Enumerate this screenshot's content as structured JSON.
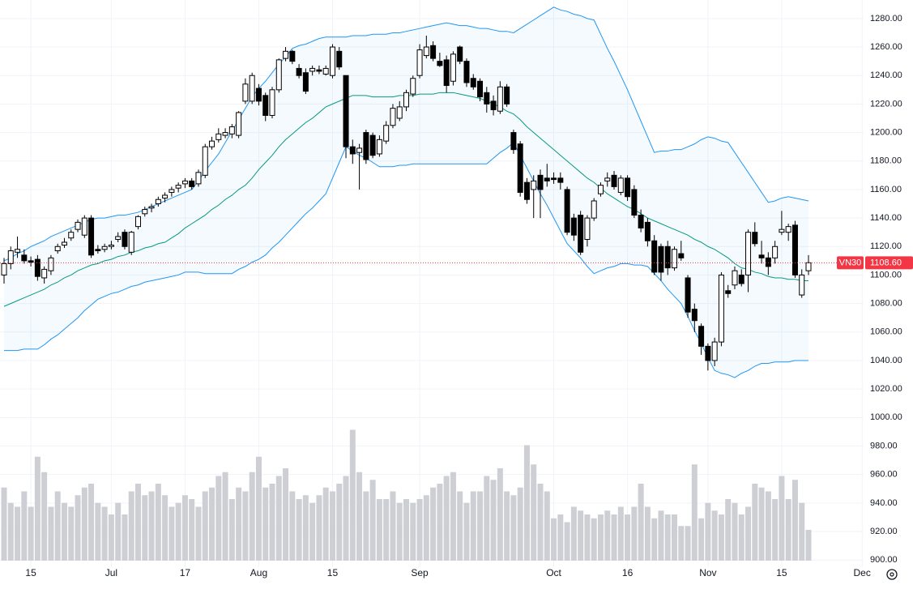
{
  "chart_data": {
    "type": "candlestick",
    "symbol": "VN30",
    "last_price": {
      "value": 1108.6,
      "label": "1108.60"
    },
    "ylim": [
      895,
      1293
    ],
    "yticks": [
      {
        "value": 900,
        "label": "900.00"
      },
      {
        "value": 920,
        "label": "920.00"
      },
      {
        "value": 940,
        "label": "940.00"
      },
      {
        "value": 960,
        "label": "960.00"
      },
      {
        "value": 980,
        "label": "980.00"
      },
      {
        "value": 1000,
        "label": "1000.00"
      },
      {
        "value": 1020,
        "label": "1020.00"
      },
      {
        "value": 1040,
        "label": "1040.00"
      },
      {
        "value": 1060,
        "label": "1060.00"
      },
      {
        "value": 1080,
        "label": "1080.00"
      },
      {
        "value": 1100,
        "label": "1100.00"
      },
      {
        "value": 1120,
        "label": "1120.00"
      },
      {
        "value": 1140,
        "label": "1140.00"
      },
      {
        "value": 1160,
        "label": "1160.00"
      },
      {
        "value": 1180,
        "label": "1180.00"
      },
      {
        "value": 1200,
        "label": "1200.00"
      },
      {
        "value": 1220,
        "label": "1220.00"
      },
      {
        "value": 1240,
        "label": "1240.00"
      },
      {
        "value": 1260,
        "label": "1260.00"
      },
      {
        "value": 1280,
        "label": "1280.00"
      }
    ],
    "grid": true,
    "volume_lim": [
      0,
      400
    ],
    "colors": {
      "up": "#ffffff",
      "down": "#000000",
      "outline": "#000000",
      "volume": "#cdcfd4",
      "bb_upper": "#2196f3",
      "bb_middle": "#089981",
      "bb_lower": "#2196f3",
      "band_fill": "#2196f3",
      "last_price": "#f23645",
      "grid": "#f0f3fa"
    },
    "categories": [
      null,
      null,
      null,
      null,
      "15",
      null,
      null,
      null,
      null,
      null,
      null,
      null,
      null,
      null,
      null,
      null,
      "Jul",
      null,
      null,
      null,
      null,
      null,
      null,
      null,
      null,
      null,
      null,
      "17",
      null,
      null,
      null,
      null,
      null,
      null,
      null,
      null,
      null,
      null,
      "Aug",
      null,
      null,
      null,
      null,
      null,
      null,
      null,
      null,
      null,
      null,
      "15",
      null,
      null,
      null,
      null,
      null,
      null,
      null,
      null,
      null,
      null,
      null,
      null,
      "Sep",
      null,
      null,
      null,
      null,
      null,
      null,
      null,
      null,
      null,
      null,
      null,
      null,
      null,
      null,
      null,
      null,
      null,
      null,
      null,
      "Oct",
      null,
      null,
      null,
      null,
      null,
      null,
      null,
      null,
      null,
      null,
      "16",
      null,
      null,
      null,
      null,
      null,
      null,
      null,
      null,
      null,
      null,
      null,
      "Nov",
      null,
      null,
      null,
      null,
      null,
      null,
      null,
      null,
      null,
      null,
      "15",
      null,
      null,
      null,
      null,
      null,
      null,
      null,
      null,
      null,
      null,
      null,
      "Dec"
    ],
    "open": [
      1100,
      1108,
      1116,
      1114,
      1110,
      1111,
      1098,
      1103,
      1117,
      1121,
      1126,
      1132,
      1128,
      1140,
      1118,
      1118,
      1120,
      1125,
      1130,
      1116,
      1134,
      1143,
      1147,
      1150,
      1154,
      1158,
      1161,
      1164,
      1166,
      1164,
      1170,
      1190,
      1195,
      1198,
      1199,
      1198,
      1222,
      1222,
      1231,
      1226,
      1212,
      1230,
      1252,
      1257,
      1245,
      1242,
      1243,
      1244,
      1241,
      1240,
      1257,
      1240,
      1190,
      1186,
      1200,
      1198,
      1185,
      1194,
      1205,
      1210,
      1218,
      1227,
      1240,
      1254,
      1261,
      1250,
      1251,
      1236,
      1260,
      1250,
      1238,
      1236,
      1228,
      1222,
      1215,
      1232,
      1200,
      1192,
      1165,
      1160,
      1170,
      1168,
      1168,
      1168,
      1160,
      1140,
      1142,
      1125,
      1140,
      1157,
      1166,
      1170,
      1158,
      1168,
      1160,
      1142,
      1137,
      1124,
      1120,
      1120,
      1105,
      1115,
      1098,
      1076,
      1064,
      1050,
      1040,
      1053,
      1089,
      1093,
      1100,
      1100,
      1130,
      1114,
      1112,
      1112,
      1130,
      1130,
      1135,
      1086,
      1103,
      null,
      null,
      null,
      null,
      null,
      null,
      null,
      null
    ],
    "high": [
      1112,
      1120,
      1127,
      1118,
      1113,
      1114,
      1106,
      1114,
      1122,
      1126,
      1132,
      1139,
      1142,
      1142,
      1121,
      1122,
      1124,
      1130,
      1132,
      1131,
      1142,
      1148,
      1150,
      1155,
      1158,
      1162,
      1165,
      1168,
      1168,
      1174,
      1192,
      1197,
      1203,
      1203,
      1206,
      1215,
      1238,
      1242,
      1234,
      1228,
      1232,
      1252,
      1260,
      1258,
      1248,
      1245,
      1247,
      1247,
      1247,
      1262,
      1260,
      1240,
      1195,
      1192,
      1202,
      1200,
      1198,
      1208,
      1220,
      1222,
      1230,
      1240,
      1262,
      1268,
      1264,
      1256,
      1254,
      1257,
      1261,
      1252,
      1241,
      1238,
      1232,
      1226,
      1236,
      1234,
      1202,
      1194,
      1168,
      1170,
      1174,
      1178,
      1172,
      1172,
      1162,
      1143,
      1145,
      1142,
      1154,
      1165,
      1172,
      1173,
      1170,
      1170,
      1163,
      1146,
      1140,
      1128,
      1122,
      1124,
      1120,
      1124,
      1100,
      1080,
      1066,
      1052,
      1056,
      1102,
      1093,
      1106,
      1104,
      1132,
      1137,
      1124,
      1116,
      1124,
      1145,
      1136,
      1138,
      1104,
      1114,
      null,
      null,
      null,
      null,
      null,
      null,
      null,
      null
    ],
    "low": [
      1094,
      1104,
      1112,
      1108,
      1106,
      1096,
      1094,
      1100,
      1115,
      1119,
      1124,
      1130,
      1126,
      1112,
      1115,
      1116,
      1118,
      1123,
      1118,
      1114,
      1132,
      1141,
      1144,
      1148,
      1151,
      1155,
      1158,
      1161,
      1160,
      1162,
      1168,
      1188,
      1193,
      1196,
      1196,
      1196,
      1220,
      1220,
      1219,
      1208,
      1210,
      1228,
      1250,
      1248,
      1238,
      1227,
      1240,
      1241,
      1240,
      1238,
      1244,
      1182,
      1178,
      1160,
      1178,
      1182,
      1183,
      1192,
      1203,
      1208,
      1215,
      1225,
      1238,
      1252,
      1250,
      1246,
      1228,
      1233,
      1248,
      1232,
      1230,
      1222,
      1214,
      1212,
      1213,
      1218,
      1185,
      1155,
      1150,
      1140,
      1140,
      1162,
      1164,
      1160,
      1128,
      1124,
      1114,
      1120,
      1138,
      1155,
      1162,
      1160,
      1156,
      1152,
      1140,
      1130,
      1120,
      1100,
      1096,
      1100,
      1103,
      1110,
      1070,
      1060,
      1044,
      1033,
      1036,
      1050,
      1084,
      1090,
      1092,
      1088,
      1120,
      1108,
      1100,
      1108,
      1128,
      1124,
      1098,
      1084,
      1100,
      null,
      null,
      null,
      null,
      null,
      null,
      null,
      null
    ],
    "close": [
      1108,
      1117,
      1118,
      1110,
      1109,
      1099,
      1104,
      1112,
      1120,
      1123,
      1130,
      1137,
      1140,
      1114,
      1117,
      1120,
      1121,
      1127,
      1120,
      1130,
      1141,
      1146,
      1148,
      1153,
      1156,
      1160,
      1163,
      1166,
      1162,
      1172,
      1190,
      1194,
      1199,
      1200,
      1204,
      1214,
      1234,
      1240,
      1222,
      1212,
      1230,
      1251,
      1257,
      1250,
      1240,
      1229,
      1245,
      1243,
      1245,
      1260,
      1246,
      1190,
      1185,
      1189,
      1181,
      1184,
      1195,
      1205,
      1217,
      1218,
      1228,
      1238,
      1258,
      1260,
      1252,
      1247,
      1233,
      1255,
      1250,
      1235,
      1232,
      1225,
      1220,
      1216,
      1232,
      1220,
      1188,
      1158,
      1153,
      1166,
      1160,
      1166,
      1167,
      1165,
      1130,
      1128,
      1116,
      1140,
      1152,
      1163,
      1168,
      1162,
      1168,
      1155,
      1142,
      1133,
      1124,
      1102,
      1102,
      1105,
      1118,
      1112,
      1074,
      1068,
      1050,
      1040,
      1053,
      1100,
      1087,
      1103,
      1094,
      1130,
      1122,
      1112,
      1106,
      1120,
      1132,
      1134,
      1100,
      1100,
      1108.6,
      null,
      null,
      null,
      null,
      null,
      null,
      null,
      null
    ],
    "volume": [
      95,
      75,
      70,
      90,
      70,
      135,
      115,
      70,
      90,
      75,
      70,
      85,
      95,
      100,
      75,
      70,
      60,
      75,
      60,
      90,
      100,
      85,
      90,
      100,
      85,
      70,
      75,
      85,
      80,
      70,
      90,
      95,
      110,
      115,
      80,
      95,
      90,
      115,
      135,
      95,
      100,
      110,
      120,
      90,
      80,
      85,
      75,
      85,
      95,
      90,
      100,
      110,
      170,
      115,
      90,
      105,
      80,
      80,
      90,
      75,
      80,
      75,
      80,
      85,
      95,
      100,
      110,
      115,
      90,
      75,
      90,
      90,
      110,
      105,
      120,
      90,
      85,
      95,
      150,
      125,
      100,
      90,
      55,
      60,
      50,
      70,
      65,
      60,
      55,
      60,
      65,
      60,
      70,
      60,
      70,
      100,
      70,
      55,
      65,
      60,
      60,
      45,
      45,
      125,
      55,
      75,
      65,
      60,
      80,
      75,
      60,
      70,
      100,
      95,
      90,
      80,
      110,
      80,
      105,
      75,
      40,
      null,
      null,
      null,
      null,
      null,
      null,
      null,
      null
    ],
    "bb_upper": [
      1110,
      1112,
      1115,
      1117,
      1120,
      1122,
      1124,
      1127,
      1129,
      1131,
      1133,
      1135,
      1137,
      1139,
      1140,
      1140,
      1141,
      1142,
      1142,
      1143,
      1144,
      1146,
      1148,
      1150,
      1152,
      1154,
      1156,
      1158,
      1160,
      1166,
      1173,
      1179,
      1185,
      1193,
      1201,
      1209,
      1217,
      1225,
      1231,
      1236,
      1242,
      1248,
      1253,
      1259,
      1261,
      1262,
      1264,
      1266,
      1267,
      1267,
      1267,
      1267,
      1268,
      1268,
      1268,
      1269,
      1269,
      1269,
      1270,
      1270,
      1271,
      1272,
      1273,
      1274,
      1275,
      1276,
      1277,
      1276,
      1275,
      1275,
      1274,
      1273,
      1273,
      1272,
      1271,
      1271,
      1270,
      1273,
      1276,
      1279,
      1282,
      1285,
      1288,
      1286,
      1285,
      1283,
      1282,
      1280,
      1279,
      1269,
      1259,
      1250,
      1240,
      1230,
      1219,
      1208,
      1197,
      1186,
      1187,
      1187,
      1188,
      1188,
      1190,
      1192,
      1195,
      1197,
      1196,
      1194,
      1193,
      1186,
      1179,
      1172,
      1165,
      1158,
      1151,
      1152,
      1154,
      1155,
      1154,
      1153,
      1152,
      null,
      null,
      null,
      null,
      null,
      null,
      null,
      null
    ],
    "bb_middle": [
      1078,
      1080,
      1082,
      1084,
      1086,
      1088,
      1090,
      1093,
      1095,
      1098,
      1100,
      1103,
      1105,
      1107,
      1108,
      1110,
      1111,
      1113,
      1114,
      1116,
      1117,
      1119,
      1120,
      1122,
      1123,
      1126,
      1129,
      1133,
      1136,
      1139,
      1142,
      1146,
      1149,
      1153,
      1156,
      1160,
      1163,
      1168,
      1174,
      1179,
      1184,
      1190,
      1195,
      1199,
      1203,
      1207,
      1210,
      1214,
      1218,
      1220,
      1222,
      1224,
      1226,
      1226,
      1226,
      1225,
      1225,
      1225,
      1225,
      1226,
      1226,
      1226,
      1227,
      1227,
      1227,
      1228,
      1228,
      1228,
      1227,
      1226,
      1225,
      1224,
      1222,
      1220,
      1218,
      1215,
      1213,
      1209,
      1204,
      1200,
      1196,
      1192,
      1188,
      1184,
      1180,
      1176,
      1172,
      1168,
      1165,
      1161,
      1157,
      1154,
      1151,
      1148,
      1146,
      1143,
      1140,
      1138,
      1136,
      1134,
      1132,
      1130,
      1128,
      1125,
      1123,
      1120,
      1118,
      1115,
      1112,
      1108,
      1105,
      1104,
      1102,
      1101,
      1099,
      1098,
      1098,
      1097,
      1097,
      1096,
      1096,
      null,
      null,
      null,
      null,
      null,
      null,
      null,
      null
    ],
    "bb_lower": [
      1047,
      1047,
      1047,
      1048,
      1048,
      1048,
      1051,
      1055,
      1058,
      1062,
      1066,
      1070,
      1075,
      1079,
      1083,
      1085,
      1087,
      1088,
      1090,
      1092,
      1093,
      1095,
      1096,
      1097,
      1098,
      1099,
      1100,
      1102,
      1102,
      1102,
      1101,
      1101,
      1101,
      1101,
      1101,
      1104,
      1106,
      1109,
      1111,
      1114,
      1119,
      1123,
      1128,
      1133,
      1138,
      1143,
      1147,
      1152,
      1157,
      1168,
      1179,
      1190,
      1187,
      1184,
      1182,
      1179,
      1176,
      1176,
      1176,
      1177,
      1177,
      1178,
      1178,
      1178,
      1178,
      1178,
      1178,
      1178,
      1178,
      1178,
      1178,
      1178,
      1178,
      1182,
      1186,
      1189,
      1193,
      1184,
      1175,
      1166,
      1157,
      1149,
      1140,
      1131,
      1122,
      1117,
      1112,
      1106,
      1101,
      1103,
      1105,
      1106,
      1108,
      1108,
      1107,
      1107,
      1106,
      1101,
      1096,
      1090,
      1085,
      1080,
      1071,
      1061,
      1052,
      1042,
      1033,
      1031,
      1030,
      1028,
      1031,
      1033,
      1036,
      1038,
      1038,
      1039,
      1039,
      1039,
      1040,
      1040,
      1040,
      null,
      null,
      null,
      null,
      null,
      null,
      null,
      null
    ]
  }
}
